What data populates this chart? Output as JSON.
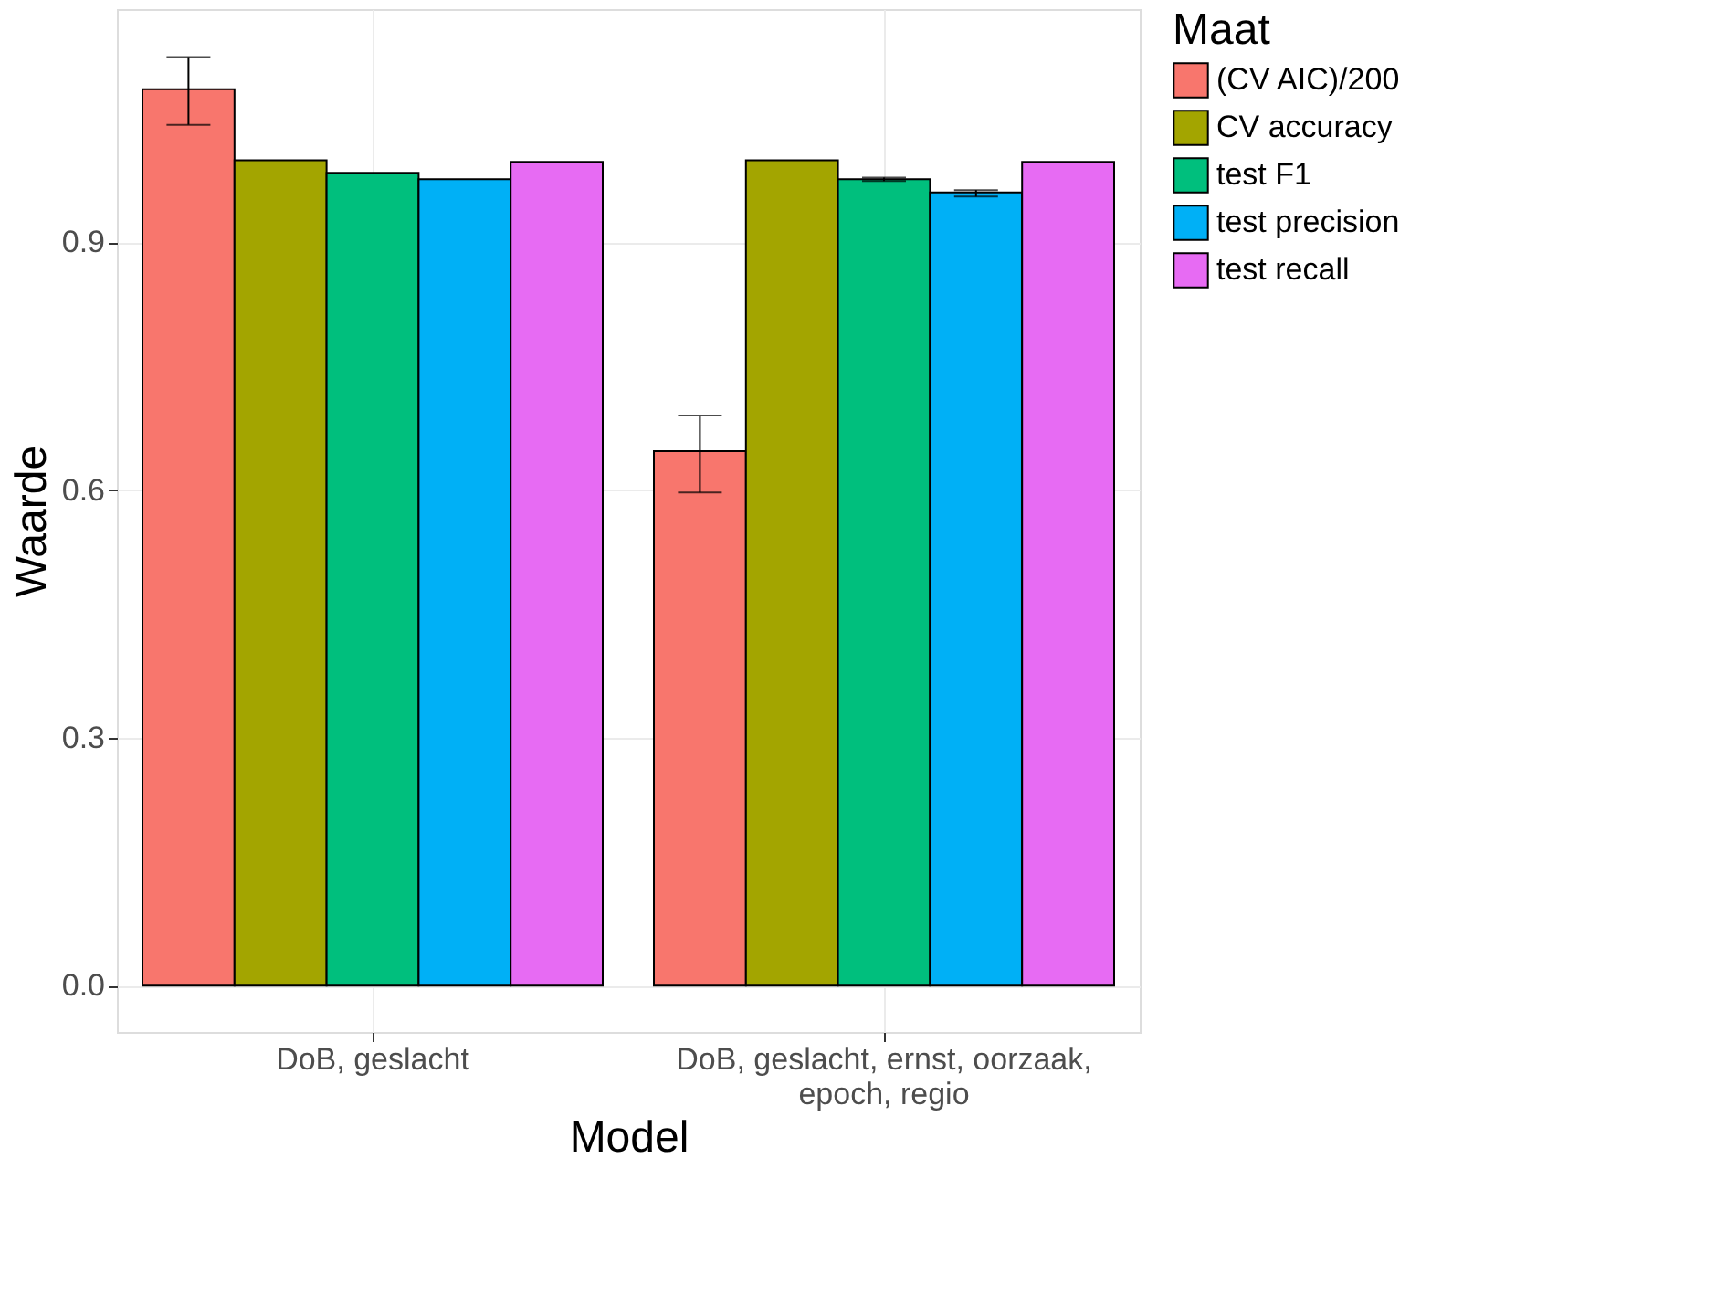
{
  "chart_data": {
    "type": "bar",
    "xlabel": "Model",
    "ylabel": "Waarde",
    "legend_title": "Maat",
    "categories": [
      "DoB, geslacht",
      "DoB, geslacht, ernst, oorzaak, epoch, regio"
    ],
    "series": [
      {
        "name": "(CV AIC)/200",
        "color": "#f8766d",
        "values": [
          1.085,
          0.647
        ],
        "errors": [
          [
            1.042,
            1.124
          ],
          [
            0.597,
            0.69
          ]
        ]
      },
      {
        "name": "CV accuracy",
        "color": "#a3a500",
        "values": [
          0.999,
          0.999
        ],
        "errors": [
          null,
          null
        ]
      },
      {
        "name": "test F1",
        "color": "#00bf7d",
        "values": [
          0.984,
          0.976
        ],
        "errors": [
          null,
          [
            0.974,
            0.978
          ]
        ]
      },
      {
        "name": "test precision",
        "color": "#00b0f6",
        "values": [
          0.976,
          0.96
        ],
        "errors": [
          null,
          [
            0.955,
            0.963
          ]
        ]
      },
      {
        "name": "test recall",
        "color": "#e76bf3",
        "values": [
          0.997,
          0.997
        ],
        "errors": [
          null,
          null
        ]
      }
    ],
    "ylim": [
      -0.056,
      1.182
    ],
    "yticks": [
      {
        "value": 0,
        "label": "0.0"
      },
      {
        "value": 0.3,
        "label": "0.3"
      },
      {
        "value": 0.6,
        "label": "0.6"
      },
      {
        "value": 0.9,
        "label": "0.9"
      }
    ],
    "grid": true,
    "legend": "right"
  }
}
